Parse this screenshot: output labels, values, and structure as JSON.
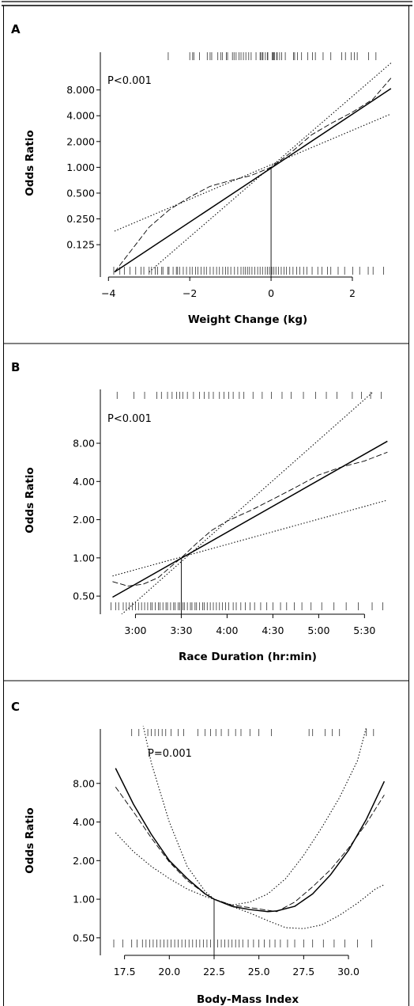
{
  "chart_data": [
    {
      "panel": "A",
      "type": "line",
      "p_value_text": "P<0.001",
      "xlabel": "Weight Change (kg)",
      "ylabel": "Odds Ratio",
      "x_ticks": [
        -4,
        -2,
        0,
        2
      ],
      "x_tick_labels": [
        "−4",
        "−2",
        "0",
        "2"
      ],
      "xlim": [
        -4.2,
        3.05
      ],
      "y_scale": "log",
      "y_ticks": [
        0.125,
        0.25,
        0.5,
        1,
        2,
        4,
        8
      ],
      "y_tick_labels": [
        "0.125",
        "0.250",
        "0.500",
        "1.000",
        "2.000",
        "4.000",
        "8.000"
      ],
      "ylim": [
        0.0524,
        24.0
      ],
      "reference_x": 0,
      "series": [
        {
          "style": "solid",
          "x": [
            -3.85,
            2.95
          ],
          "y": [
            0.06,
            8.3
          ]
        },
        {
          "style": "dashed",
          "x": [
            -3.85,
            -3.0,
            -2.5,
            -2.0,
            -1.5,
            -1.0,
            -0.5,
            0.0,
            0.5,
            1.0,
            1.5,
            2.0,
            2.5,
            2.95
          ],
          "y": [
            0.06,
            0.2,
            0.32,
            0.45,
            0.6,
            0.7,
            0.8,
            1.0,
            1.5,
            2.4,
            3.3,
            4.4,
            6.2,
            11.0
          ]
        },
        {
          "style": "dotted",
          "x": [
            -3.85,
            2.95
          ],
          "y": [
            0.18,
            4.2
          ]
        },
        {
          "style": "dotted",
          "x": [
            -3.0,
            2.95
          ],
          "y": [
            0.06,
            16.5
          ]
        }
      ],
      "rug_top": [
        -2.53,
        -2.0,
        -1.93,
        -1.9,
        -1.76,
        -1.57,
        -1.5,
        -1.46,
        -1.31,
        -1.24,
        -1.2,
        -1.1,
        -1.07,
        -0.95,
        -0.91,
        -0.86,
        -0.79,
        -0.74,
        -0.68,
        -0.62,
        -0.55,
        -0.49,
        -0.37,
        -0.27,
        -0.25,
        -0.21,
        -0.2,
        -0.14,
        -0.09,
        -0.08,
        0.03,
        0.05,
        0.07,
        0.09,
        0.14,
        0.15,
        0.21,
        0.26,
        0.35,
        0.55,
        0.58,
        0.65,
        0.75,
        0.9,
        1.02,
        1.09,
        1.28,
        1.47,
        1.74,
        1.83,
        1.97,
        2.05,
        2.12,
        2.4,
        2.58
      ],
      "rug_bottom": [
        -3.87,
        -3.72,
        -3.61,
        -3.47,
        -3.33,
        -3.2,
        -3.13,
        -3.0,
        -2.94,
        -2.85,
        -2.79,
        -2.69,
        -2.66,
        -2.54,
        -2.51,
        -2.41,
        -2.33,
        -2.3,
        -2.25,
        -2.16,
        -2.08,
        -2.0,
        -1.94,
        -1.86,
        -1.8,
        -1.72,
        -1.65,
        -1.59,
        -1.5,
        -1.42,
        -1.34,
        -1.27,
        -1.19,
        -1.12,
        -1.06,
        -0.99,
        -0.9,
        -0.82,
        -0.74,
        -0.68,
        -0.63,
        -0.58,
        -0.53,
        -0.47,
        -0.4,
        -0.33,
        -0.27,
        -0.21,
        -0.14,
        -0.09,
        -0.04,
        0.02,
        0.07,
        0.12,
        0.18,
        0.25,
        0.32,
        0.38,
        0.46,
        0.54,
        0.63,
        0.71,
        0.8,
        0.88,
        1.01,
        1.15,
        1.25,
        1.39,
        1.47,
        1.65,
        1.81,
        2.01,
        2.18,
        2.39,
        2.51,
        2.77
      ]
    },
    {
      "panel": "B",
      "type": "line",
      "p_value_text": "P<0.001",
      "xlabel": "Race Duration (hr:min)",
      "ylabel": "Odds Ratio",
      "x_ticks": [
        180,
        210,
        240,
        270,
        300,
        330
      ],
      "x_tick_labels": [
        "3:00",
        "3:30",
        "4:00",
        "4:30",
        "5:00",
        "5:30"
      ],
      "xlim": [
        157,
        350
      ],
      "y_scale": "log",
      "y_ticks": [
        0.5,
        1,
        2,
        4,
        8
      ],
      "y_tick_labels": [
        "0.50",
        "1.00",
        "2.00",
        "4.00",
        "8.00"
      ],
      "ylim": [
        0.36,
        22.5
      ],
      "reference_x": 210,
      "series": [
        {
          "style": "solid",
          "x": [
            165,
            345
          ],
          "y": [
            0.49,
            8.3
          ]
        },
        {
          "style": "dashed",
          "x": [
            165,
            175,
            185,
            195,
            202,
            210,
            220,
            230,
            240,
            255,
            270,
            285,
            300,
            315,
            330,
            345
          ],
          "y": [
            0.65,
            0.6,
            0.62,
            0.7,
            0.83,
            1.0,
            1.3,
            1.65,
            1.95,
            2.35,
            2.9,
            3.6,
            4.5,
            5.2,
            5.8,
            6.8
          ]
        },
        {
          "style": "dotted",
          "x": [
            165,
            345
          ],
          "y": [
            0.72,
            2.85
          ]
        },
        {
          "style": "dotted",
          "x": [
            165,
            335
          ],
          "y": [
            0.31,
            20.0
          ]
        }
      ],
      "rug_top": [
        168,
        179,
        186,
        194,
        197,
        201,
        204,
        207,
        209,
        211,
        214,
        218,
        222,
        225,
        228,
        231,
        235,
        238,
        241,
        244,
        248,
        251,
        257,
        263,
        269,
        276,
        282,
        290,
        298,
        305,
        312,
        322,
        328,
        334,
        341
      ],
      "rug_bottom": [
        164,
        167,
        169,
        172,
        174,
        176,
        178,
        180,
        182,
        184,
        186,
        188,
        190,
        191,
        193,
        195,
        196,
        198,
        200,
        201,
        203,
        205,
        206,
        208,
        209,
        211,
        212,
        214,
        216,
        217,
        219,
        220,
        222,
        224,
        225,
        227,
        229,
        231,
        233,
        235,
        237,
        239,
        241,
        244,
        246,
        249,
        252,
        255,
        258,
        262,
        266,
        270,
        275,
        279,
        284,
        289,
        295,
        302,
        310,
        318,
        326,
        335,
        342
      ]
    },
    {
      "panel": "C",
      "type": "line",
      "p_value_text": "P=0.001",
      "xlabel": "Body-Mass Index",
      "ylabel": "Odds Ratio",
      "x_ticks": [
        17.5,
        20.0,
        22.5,
        25.0,
        27.5,
        30.0
      ],
      "x_tick_labels": [
        "17.5",
        "20.0",
        "22.5",
        "25.0",
        "27.5",
        "30.0"
      ],
      "xlim": [
        16.15,
        32.6
      ],
      "y_scale": "log",
      "y_ticks": [
        0.5,
        1,
        2,
        4,
        8
      ],
      "y_tick_labels": [
        "0.50",
        "1.00",
        "2.00",
        "4.00",
        "8.00"
      ],
      "ylim": [
        0.365,
        22.5
      ],
      "reference_x": 22.5,
      "series": [
        {
          "style": "solid",
          "x": [
            17.0,
            18.0,
            19.0,
            20.0,
            21.0,
            22.0,
            22.5,
            23.5,
            24.5,
            25.5,
            26.0,
            27.0,
            28.0,
            29.0,
            30.0,
            31.0,
            32.0
          ],
          "y": [
            10.5,
            5.5,
            3.2,
            2.0,
            1.45,
            1.1,
            1.0,
            0.88,
            0.83,
            0.8,
            0.81,
            0.88,
            1.1,
            1.55,
            2.4,
            4.2,
            8.3
          ]
        },
        {
          "style": "dashed",
          "x": [
            17.0,
            18.0,
            19.0,
            20.0,
            21.0,
            22.0,
            22.5,
            23.5,
            24.5,
            25.5,
            26.0,
            27.0,
            28.0,
            29.0,
            30.0,
            31.0,
            32.0
          ],
          "y": [
            7.5,
            4.8,
            3.0,
            1.95,
            1.4,
            1.1,
            1.0,
            0.9,
            0.86,
            0.82,
            0.8,
            0.95,
            1.25,
            1.7,
            2.5,
            3.9,
            6.5
          ]
        },
        {
          "style": "dotted",
          "x": [
            17.0,
            18.0,
            19.0,
            20.0,
            21.0,
            22.0,
            22.5,
            23.5,
            24.5,
            25.5,
            26.5,
            27.5,
            28.5,
            29.5,
            30.5,
            31.5,
            32.0
          ],
          "y": [
            3.3,
            2.35,
            1.8,
            1.45,
            1.2,
            1.05,
            1.0,
            0.88,
            0.78,
            0.68,
            0.6,
            0.59,
            0.63,
            0.75,
            0.93,
            1.2,
            1.3
          ]
        },
        {
          "style": "dotted",
          "x": [
            18.5,
            19.0,
            20.0,
            21.0,
            22.0,
            22.5,
            23.5,
            24.5,
            25.5,
            26.5,
            27.5,
            28.5,
            29.5,
            30.5,
            31.0
          ],
          "y": [
            24.0,
            11.5,
            4.0,
            1.8,
            1.15,
            1.0,
            0.9,
            0.95,
            1.1,
            1.45,
            2.2,
            3.6,
            6.2,
            12.0,
            22.0
          ]
        }
      ],
      "rug_top": [
        17.9,
        18.3,
        18.8,
        19.0,
        19.2,
        19.4,
        19.6,
        19.8,
        20.1,
        20.5,
        20.8,
        21.6,
        22.0,
        22.3,
        22.6,
        22.9,
        23.3,
        23.7,
        24.0,
        24.5,
        25.0,
        25.7,
        27.8,
        28.0,
        28.7,
        29.1,
        29.5,
        31.0,
        31.4
      ],
      "rug_bottom": [
        16.9,
        17.4,
        17.9,
        18.2,
        18.5,
        18.7,
        18.9,
        19.1,
        19.3,
        19.5,
        19.7,
        19.9,
        20.1,
        20.3,
        20.5,
        20.7,
        20.9,
        21.1,
        21.3,
        21.5,
        21.7,
        21.9,
        22.1,
        22.3,
        22.5,
        22.7,
        22.9,
        23.1,
        23.3,
        23.5,
        23.7,
        23.9,
        24.1,
        24.4,
        24.7,
        25.0,
        25.3,
        25.6,
        25.9,
        26.2,
        26.6,
        27.0,
        27.5,
        28.0,
        28.6,
        29.2,
        29.8,
        30.5,
        31.3
      ]
    }
  ]
}
